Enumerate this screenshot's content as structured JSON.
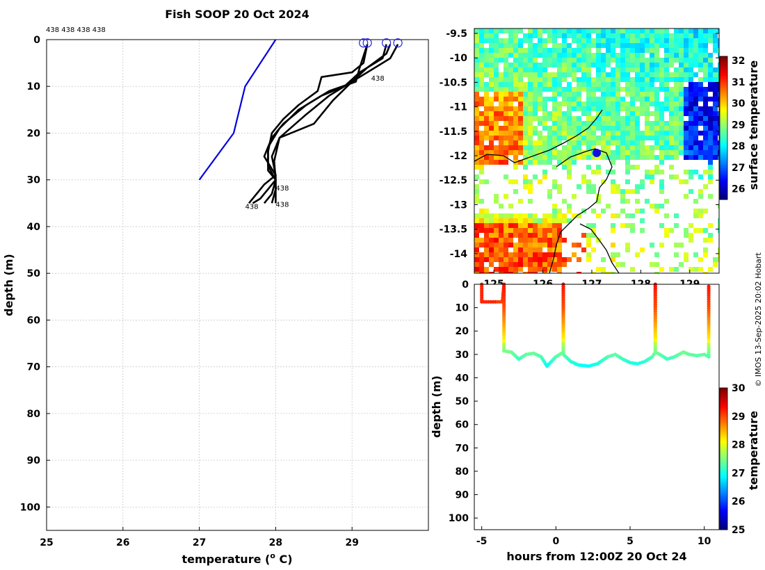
{
  "title": "Fish SOOP 20 Oct 2024",
  "credit": "© IMOS 13-Sep-2025 20:02 Hobart",
  "chart_data": [
    {
      "type": "line",
      "name": "profiles",
      "xlabel": "temperature (o C)",
      "ylabel": "depth (m)",
      "xlim": [
        25,
        30
      ],
      "ylim": [
        105,
        0
      ],
      "xticks": [
        "25",
        "26",
        "27",
        "28",
        "29"
      ],
      "yticks": [
        "0",
        "10",
        "20",
        "30",
        "40",
        "50",
        "60",
        "70",
        "80",
        "90",
        "100"
      ],
      "grid": true,
      "top_labels": "438 438 438 438",
      "profile_label": "438",
      "series": [
        {
          "name": "climatology",
          "color": "#0000dd",
          "points": [
            [
              28.0,
              0
            ],
            [
              27.6,
              10
            ],
            [
              27.45,
              20
            ],
            [
              27.0,
              30
            ]
          ]
        },
        {
          "name": "p1",
          "color": "#000000",
          "points": [
            [
              29.2,
              1
            ],
            [
              29.15,
              5
            ],
            [
              29.0,
              7
            ],
            [
              28.6,
              8
            ],
            [
              28.55,
              11
            ],
            [
              28.3,
              14
            ],
            [
              28.1,
              17
            ],
            [
              27.95,
              20
            ],
            [
              27.9,
              24
            ],
            [
              27.9,
              28
            ],
            [
              28.0,
              30
            ],
            [
              27.9,
              32
            ],
            [
              27.8,
              34
            ],
            [
              27.7,
              35
            ]
          ]
        },
        {
          "name": "p2",
          "color": "#000000",
          "points": [
            [
              29.2,
              1
            ],
            [
              29.1,
              6
            ],
            [
              29.05,
              9
            ],
            [
              28.7,
              11
            ],
            [
              28.4,
              14
            ],
            [
              28.1,
              18
            ],
            [
              27.95,
              21
            ],
            [
              27.85,
              25
            ],
            [
              28.0,
              29
            ],
            [
              27.85,
              31
            ],
            [
              27.75,
              33
            ],
            [
              27.65,
              35
            ]
          ]
        },
        {
          "name": "p3",
          "color": "#000000",
          "points": [
            [
              29.45,
              1
            ],
            [
              29.4,
              4
            ],
            [
              29.1,
              7
            ],
            [
              28.9,
              10
            ],
            [
              28.6,
              12
            ],
            [
              28.3,
              15
            ],
            [
              28.05,
              19
            ],
            [
              27.9,
              23
            ],
            [
              27.9,
              27
            ],
            [
              28.0,
              30
            ],
            [
              27.95,
              33
            ],
            [
              27.85,
              35
            ]
          ]
        },
        {
          "name": "p4",
          "color": "#000000",
          "points": [
            [
              29.5,
              1
            ],
            [
              29.45,
              3
            ],
            [
              29.2,
              6
            ],
            [
              29.0,
              9
            ],
            [
              28.7,
              12
            ],
            [
              28.4,
              16
            ],
            [
              28.05,
              21
            ],
            [
              27.95,
              25
            ],
            [
              28.0,
              29
            ],
            [
              28.0,
              32
            ],
            [
              27.95,
              35
            ]
          ]
        },
        {
          "name": "p5",
          "color": "#000000",
          "points": [
            [
              29.6,
              1
            ],
            [
              29.5,
              4
            ],
            [
              29.3,
              6
            ],
            [
              29.0,
              9
            ],
            [
              28.75,
              13
            ],
            [
              28.5,
              18
            ],
            [
              28.05,
              21
            ],
            [
              27.98,
              26
            ],
            [
              28.0,
              30
            ],
            [
              28.0,
              35
            ]
          ]
        }
      ],
      "start_markers": [
        29.15,
        29.45,
        29.6,
        29.2
      ]
    },
    {
      "type": "heatmap",
      "name": "sst-map",
      "ylim": [
        -14.4,
        -9.4
      ],
      "xlim": [
        124.6,
        129.6
      ],
      "yticks": [
        "-9.5",
        "-10",
        "-10.5",
        "-11",
        "-11.5",
        "-12",
        "-12.5",
        "-13",
        "-13.5",
        "-14"
      ],
      "xticks": [
        "125",
        "126",
        "127",
        "128",
        "129"
      ],
      "colorbar_label": "surface temperature",
      "colorbar_ticks": [
        "26",
        "27",
        "28",
        "29",
        "30",
        "31",
        "32"
      ],
      "clim": [
        25.5,
        32.2
      ]
    },
    {
      "type": "scatter",
      "name": "section",
      "xlabel": "hours from 12:00Z 20 Oct 24",
      "ylabel": "depth (m)",
      "xlim": [
        -5.5,
        11
      ],
      "ylim": [
        105,
        0
      ],
      "xticks": [
        "-5",
        "0",
        "5",
        "10"
      ],
      "yticks": [
        "0",
        "10",
        "20",
        "30",
        "40",
        "50",
        "60",
        "70",
        "80",
        "90",
        "100"
      ],
      "colorbar_label": "temperature",
      "colorbar_ticks": [
        "25",
        "26",
        "27",
        "28",
        "29",
        "30"
      ],
      "clim": [
        25,
        30
      ],
      "path": [
        [
          -5,
          0
        ],
        [
          -5,
          7.5
        ],
        [
          -3.6,
          7.5
        ],
        [
          -3.5,
          0
        ],
        [
          -3.5,
          28.5
        ],
        [
          -3,
          29
        ],
        [
          -2.5,
          32
        ],
        [
          -2,
          30
        ],
        [
          -1.5,
          29.5
        ],
        [
          -1,
          31
        ],
        [
          -0.6,
          35
        ],
        [
          0,
          31
        ],
        [
          0.5,
          29
        ],
        [
          0.5,
          0
        ],
        [
          0.5,
          30
        ],
        [
          1,
          33
        ],
        [
          1.5,
          34.5
        ],
        [
          2.2,
          35
        ],
        [
          2.8,
          34
        ],
        [
          3.5,
          31
        ],
        [
          4,
          30
        ],
        [
          4.5,
          32
        ],
        [
          5,
          33.5
        ],
        [
          5.5,
          34
        ],
        [
          6,
          33
        ],
        [
          6.5,
          31
        ],
        [
          6.7,
          29
        ],
        [
          6.7,
          0
        ],
        [
          6.7,
          29
        ],
        [
          7,
          30
        ],
        [
          7.5,
          32
        ],
        [
          8,
          31
        ],
        [
          8.6,
          29
        ],
        [
          9,
          30
        ],
        [
          9.5,
          30.5
        ],
        [
          10,
          30
        ],
        [
          10.3,
          31
        ],
        [
          10.3,
          0
        ]
      ]
    }
  ]
}
